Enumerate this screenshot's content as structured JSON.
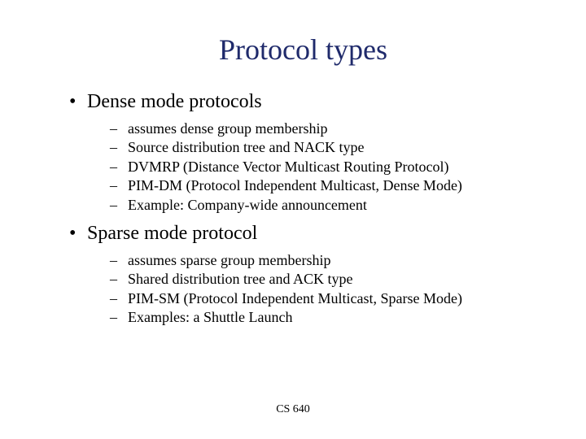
{
  "title": "Protocol types",
  "title_color": "#1f2a6b",
  "title_fontsize": 36,
  "body_fontsize_l1": 24,
  "body_fontsize_l2": 18,
  "background_color": "#ffffff",
  "text_color": "#000000",
  "bullets": [
    {
      "text": "Dense mode protocols",
      "sub": [
        "assumes dense group membership",
        "Source distribution tree and NACK type",
        "DVMRP (Distance Vector Multicast Routing Protocol)",
        "PIM-DM (Protocol Independent Multicast, Dense Mode)",
        "Example: Company-wide announcement"
      ]
    },
    {
      "text": "Sparse mode protocol",
      "sub": [
        "assumes sparse group membership",
        "Shared distribution tree and ACK type",
        "PIM-SM (Protocol Independent Multicast, Sparse Mode)",
        "Examples: a Shuttle Launch"
      ]
    }
  ],
  "footer": "CS 640",
  "l1_marker": "•",
  "l2_marker": "–"
}
